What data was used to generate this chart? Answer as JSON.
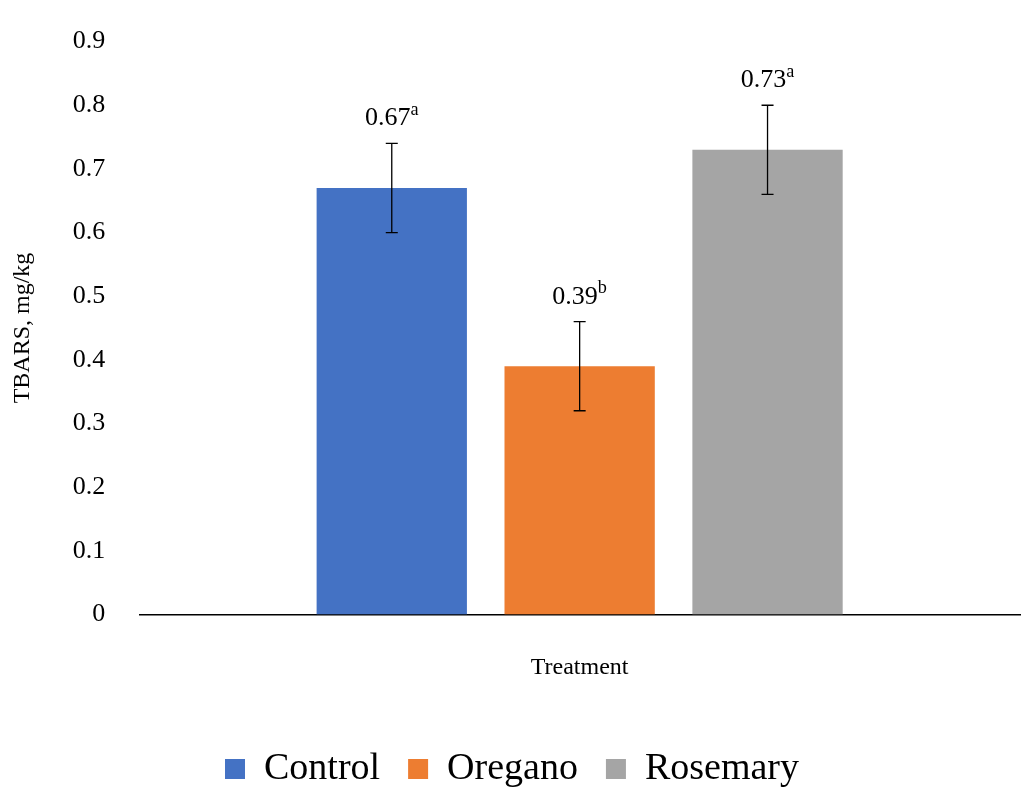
{
  "chart_data": {
    "type": "bar",
    "xlabel": "Treatment",
    "ylabel": "TBARS, mg/kg",
    "categories": [
      null
    ],
    "series": [
      {
        "name": "Control",
        "color": "#4472c4",
        "values": [
          0.67
        ],
        "errors": [
          0.07
        ],
        "value_labels": [
          "0.67$^{a}$"
        ]
      },
      {
        "name": "Oregano",
        "color": "#ed7d31",
        "values": [
          0.39
        ],
        "errors": [
          0.07
        ],
        "value_labels": [
          "0.39$^{b}$"
        ]
      },
      {
        "name": "Rosemary",
        "color": "#a5a5a5",
        "values": [
          0.73
        ],
        "errors": [
          0.07
        ],
        "value_labels": [
          "0.73$^{a}$"
        ]
      }
    ],
    "ylim": [
      0,
      0.9
    ],
    "yticks": [
      0,
      0.1,
      0.2,
      0.3,
      0.4,
      0.5,
      0.6,
      0.7,
      0.8,
      0.9
    ],
    "grid": false,
    "legend": "bottom"
  }
}
